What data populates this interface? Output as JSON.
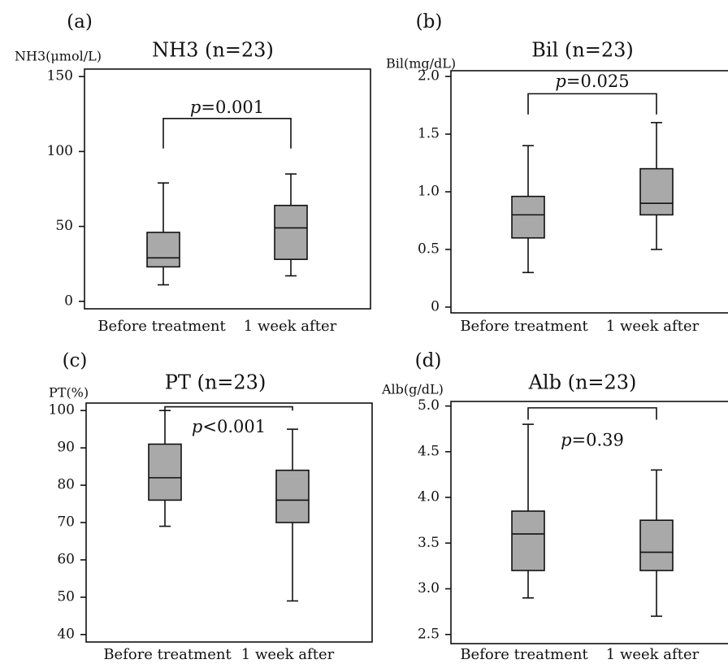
{
  "chart_data": [
    {
      "type": "box",
      "panel_label": "(a)",
      "title": "NH3 (n=23)",
      "ylabel": "NH3(μmol/L)",
      "ylim": [
        -5,
        155
      ],
      "yticks": [
        0,
        50,
        100,
        150
      ],
      "ytick_labels": [
        "0",
        "50",
        "100",
        "150"
      ],
      "categories": [
        "Before treatment",
        "1 week after"
      ],
      "boxes": [
        {
          "min": 11,
          "q1": 23,
          "median": 29,
          "q3": 46,
          "max": 79
        },
        {
          "min": 17,
          "q1": 28,
          "median": 49,
          "q3": 64,
          "max": 85
        }
      ],
      "p_value": {
        "prefix": "p",
        "text": "=0.001",
        "bracket_y": 122,
        "leg_y": 102,
        "label_y": 129
      }
    },
    {
      "type": "box",
      "panel_label": "(b)",
      "title": "Bil (n=23)",
      "ylabel": "Bil(mg/dL)",
      "ylim": [
        -0.05,
        2.05
      ],
      "yticks": [
        0,
        0.5,
        1.0,
        1.5,
        2.0
      ],
      "ytick_labels": [
        "0",
        "0.5",
        "1.0",
        "1.5",
        "2.0"
      ],
      "categories": [
        "Before treatment",
        "1 week after"
      ],
      "boxes": [
        {
          "min": 0.3,
          "q1": 0.6,
          "median": 0.8,
          "q3": 0.96,
          "max": 1.4
        },
        {
          "min": 0.5,
          "q1": 0.8,
          "median": 0.9,
          "q3": 1.2,
          "max": 1.6
        }
      ],
      "p_value": {
        "prefix": "p",
        "text": "=0.025",
        "bracket_y": 1.85,
        "leg_y": 1.67,
        "label_y": 1.95
      }
    },
    {
      "type": "box",
      "panel_label": "(c)",
      "title": "PT (n=23)",
      "ylabel": "PT(%)",
      "ylim": [
        38,
        102
      ],
      "yticks": [
        40,
        50,
        60,
        70,
        80,
        90,
        100
      ],
      "ytick_labels": [
        "40",
        "50",
        "60",
        "70",
        "80",
        "90",
        "100"
      ],
      "categories": [
        "Before treatment",
        "1 week after"
      ],
      "boxes": [
        {
          "min": 69,
          "q1": 76,
          "median": 82,
          "q3": 91,
          "max": 100
        },
        {
          "min": 49,
          "q1": 70,
          "median": 76,
          "q3": 84,
          "max": 95
        }
      ],
      "p_value": {
        "prefix": "p",
        "text": "<0.001",
        "bracket_y": 101,
        "leg_y": 100,
        "label_y": 95.5
      }
    },
    {
      "type": "box",
      "panel_label": "(d)",
      "title": "Alb (n=23)",
      "ylabel": "Alb(g/dL)",
      "ylim": [
        2.4,
        5.05
      ],
      "yticks": [
        2.5,
        3.0,
        3.5,
        4.0,
        4.5,
        5.0
      ],
      "ytick_labels": [
        "2.5",
        "3.0",
        "3.5",
        "4.0",
        "4.5",
        "5.0"
      ],
      "categories": [
        "Before treatment",
        "1 week after"
      ],
      "boxes": [
        {
          "min": 2.9,
          "q1": 3.2,
          "median": 3.6,
          "q3": 3.85,
          "max": 4.8
        },
        {
          "min": 2.7,
          "q1": 3.2,
          "median": 3.4,
          "q3": 3.75,
          "max": 4.3
        }
      ],
      "p_value": {
        "prefix": "p",
        "text": "=0.39",
        "bracket_y": 4.98,
        "leg_y": 4.85,
        "label_y": 4.62
      }
    }
  ]
}
